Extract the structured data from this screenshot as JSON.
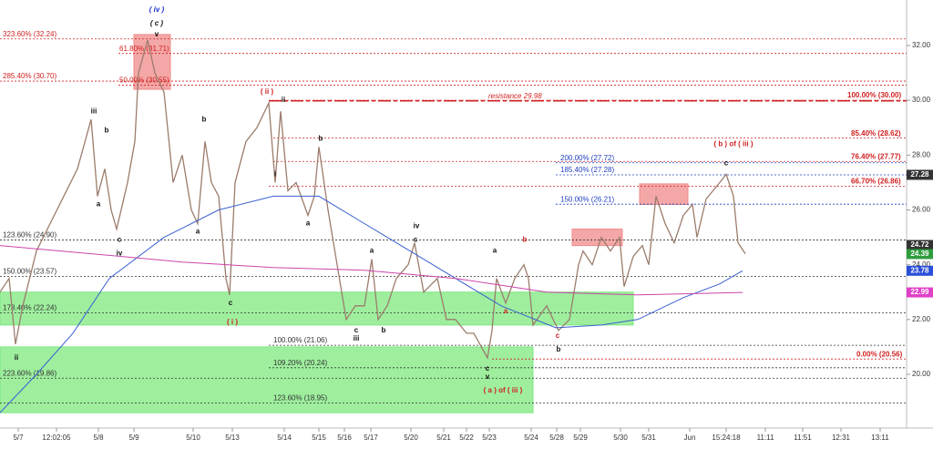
{
  "chart_data": {
    "type": "line",
    "xlim": [
      0,
      995
    ],
    "ylim": [
      18.04,
      33.66
    ],
    "yticks": [
      {
        "value": 20,
        "label": "20.00"
      },
      {
        "value": 22,
        "label": "22.00"
      },
      {
        "value": 24,
        "label": "24.00"
      },
      {
        "value": 26,
        "label": "26.00"
      },
      {
        "value": 28,
        "label": "28.00"
      },
      {
        "value": 30,
        "label": "30.00"
      },
      {
        "value": 32,
        "label": "32.00"
      }
    ],
    "xticks": [
      {
        "value": 20,
        "label": "5/7"
      },
      {
        "value": 62,
        "label": "12:02:05"
      },
      {
        "value": 108,
        "label": "5/8"
      },
      {
        "value": 147,
        "label": "5/9"
      },
      {
        "value": 212,
        "label": "5/10"
      },
      {
        "value": 255,
        "label": "5/13"
      },
      {
        "value": 312,
        "label": "5/14"
      },
      {
        "value": 350,
        "label": "5/15"
      },
      {
        "value": 378,
        "label": "5/16"
      },
      {
        "value": 407,
        "label": "5/17"
      },
      {
        "value": 451,
        "label": "5/20"
      },
      {
        "value": 487,
        "label": "5/21"
      },
      {
        "value": 512,
        "label": "5/22"
      },
      {
        "value": 537,
        "label": "5/23"
      },
      {
        "value": 583,
        "label": "5/24"
      },
      {
        "value": 611,
        "label": "5/28"
      },
      {
        "value": 637,
        "label": "5/29"
      },
      {
        "value": 681,
        "label": "5/30"
      },
      {
        "value": 712,
        "label": "5/31"
      },
      {
        "value": 757,
        "label": "Jun"
      },
      {
        "value": 797,
        "label": "15:24:18"
      },
      {
        "value": 840,
        "label": "11:11"
      },
      {
        "value": 881,
        "label": "11:51"
      },
      {
        "value": 923,
        "label": "12:31"
      },
      {
        "value": 966,
        "label": "13:11"
      }
    ],
    "series": [
      {
        "color": "#9c7c6c",
        "width": 1.3,
        "x": [
          0,
          10,
          17,
          25,
          40,
          55,
          70,
          85,
          100,
          107,
          115,
          122,
          128,
          140,
          148,
          152,
          162,
          170,
          180,
          190,
          200,
          210,
          217,
          225,
          232,
          240,
          248,
          252,
          258,
          270,
          282,
          295,
          302,
          308,
          316,
          325,
          338,
          345,
          350,
          360,
          370,
          380,
          390,
          400,
          408,
          415,
          425,
          435,
          448,
          455,
          465,
          480,
          490,
          500,
          512,
          520,
          535,
          540,
          545,
          555,
          565,
          575,
          580,
          585,
          600,
          613,
          625,
          635,
          640,
          650,
          660,
          670,
          680,
          685,
          695,
          705,
          712,
          720,
          730,
          740,
          750,
          760,
          765,
          775,
          790,
          797,
          805,
          810,
          818
        ],
        "values": [
          23.0,
          23.5,
          21.1,
          22.5,
          24.5,
          25.5,
          26.5,
          27.5,
          29.3,
          26.5,
          27.5,
          26.0,
          25.3,
          27.0,
          28.5,
          31.0,
          32.2,
          31.0,
          30.3,
          27.0,
          28.0,
          26.0,
          25.5,
          28.5,
          27.0,
          26.5,
          23.5,
          22.9,
          27.0,
          28.5,
          29.0,
          29.9,
          27.0,
          29.6,
          26.7,
          27.0,
          25.8,
          26.5,
          28.3,
          26.0,
          24.0,
          22.0,
          22.5,
          22.5,
          24.2,
          22.0,
          22.5,
          23.5,
          24.0,
          24.8,
          23.0,
          23.5,
          22.0,
          22.0,
          21.5,
          21.5,
          20.6,
          21.6,
          23.5,
          22.6,
          23.5,
          24.0,
          23.5,
          21.8,
          22.5,
          21.6,
          22.0,
          24.0,
          24.5,
          24.0,
          25.0,
          24.5,
          25.0,
          23.2,
          24.3,
          24.7,
          24.0,
          26.5,
          25.5,
          24.8,
          25.8,
          26.2,
          25.0,
          26.4,
          27.0,
          27.3,
          26.5,
          24.8,
          24.4
        ]
      },
      {
        "color": "#3a5fd0",
        "width": 1,
        "x": [
          0,
          40,
          80,
          120,
          180,
          240,
          300,
          350,
          400,
          450,
          500,
          550,
          610,
          660,
          700,
          750,
          790,
          815
        ],
        "values": [
          18.6,
          20.0,
          21.5,
          23.5,
          25.0,
          26.0,
          26.5,
          26.5,
          25.5,
          24.5,
          23.5,
          22.5,
          21.7,
          21.8,
          22.0,
          22.8,
          23.3,
          23.78
        ]
      },
      {
        "color": "#cc44aa",
        "width": 1,
        "x": [
          0,
          100,
          200,
          300,
          400,
          500,
          600,
          700,
          815
        ],
        "values": [
          24.7,
          24.4,
          24.1,
          23.9,
          23.8,
          23.5,
          23.0,
          22.9,
          22.99
        ]
      }
    ],
    "zones": [
      {
        "x0": 0,
        "x1": 695,
        "y0": 21.8,
        "y1": 23.0,
        "color": "#7ee87e"
      },
      {
        "x0": 0,
        "x1": 585,
        "y0": 18.6,
        "y1": 21.0,
        "color": "#7ee87e"
      },
      {
        "x0": 147,
        "x1": 187,
        "y0": 30.4,
        "y1": 32.4,
        "color": "#f08a8a"
      },
      {
        "x0": 628,
        "x1": 683,
        "y0": 24.7,
        "y1": 25.3,
        "color": "#f08a8a"
      },
      {
        "x0": 702,
        "x1": 755,
        "y0": 26.2,
        "y1": 26.95,
        "color": "#f08a8a"
      }
    ],
    "levels": [
      {
        "label": "323.60% (32.24)",
        "value": 32.24,
        "x0": 0,
        "label_x": 3,
        "color": "#d02020"
      },
      {
        "label": "285.40% (30.70)",
        "value": 30.7,
        "x0": 0,
        "label_x": 3,
        "color": "#d02020"
      },
      {
        "label": "61.80% (31.71)",
        "value": 31.71,
        "x0": 130,
        "label_x": 131,
        "color": "#d02020"
      },
      {
        "label": "50.00% (30.55)",
        "value": 30.55,
        "x0": 130,
        "label_x": 131,
        "color": "#d02020"
      },
      {
        "label": "resistance 29.98",
        "value": 29.98,
        "x0": 295,
        "label_x": 536,
        "color": "#d02020",
        "dashed": true
      },
      {
        "label": "100.00% (30.00)",
        "value": 30.0,
        "x0": 295,
        "label_x": 930,
        "color": "#d02020",
        "bold": true
      },
      {
        "label": "85.40% (28.62)",
        "value": 28.62,
        "x0": 300,
        "label_x": 934,
        "color": "#d02020",
        "bold": true
      },
      {
        "label": "76.40% (27.77)",
        "value": 27.77,
        "x0": 300,
        "label_x": 934,
        "color": "#d02020",
        "bold": true
      },
      {
        "label": "66.70% (26.86)",
        "value": 26.86,
        "x0": 295,
        "label_x": 934,
        "color": "#d02020",
        "bold": true
      },
      {
        "label": "200.00% (27.72)",
        "value": 27.72,
        "x0": 610,
        "label_x": 615,
        "color": "#2040c0"
      },
      {
        "label": "185.40% (27.28)",
        "value": 27.28,
        "x0": 610,
        "label_x": 615,
        "color": "#2040c0"
      },
      {
        "label": "150.00% (26.21)",
        "value": 26.21,
        "x0": 610,
        "label_x": 615,
        "color": "#2040c0"
      },
      {
        "label": "123.60% (24.90)",
        "value": 24.9,
        "x0": 0,
        "label_x": 3,
        "color": "#333333"
      },
      {
        "label": "150.00% (23.57)",
        "value": 23.57,
        "x0": 0,
        "label_x": 3,
        "color": "#333333"
      },
      {
        "label": "178.40% (22.24)",
        "value": 22.24,
        "x0": 0,
        "label_x": 3,
        "color": "#333333"
      },
      {
        "label": "100.00% (21.06)",
        "value": 21.06,
        "x0": 295,
        "label_x": 300,
        "color": "#333333"
      },
      {
        "label": "109.20% (20.24)",
        "value": 20.24,
        "x0": 295,
        "label_x": 300,
        "color": "#333333"
      },
      {
        "label": "223.60% (19.86)",
        "value": 19.86,
        "x0": 0,
        "label_x": 3,
        "color": "#333333"
      },
      {
        "label": "123.60% (18.95)",
        "value": 18.95,
        "x0": 0,
        "label_x": 300,
        "color": "#333333"
      },
      {
        "label": "0.00% (20.56)",
        "value": 20.56,
        "x0": 540,
        "label_x": 940,
        "color": "#d02020",
        "bold": true
      }
    ],
    "price_labels": [
      {
        "value": 27.28,
        "color": "#333333"
      },
      {
        "value": 24.72,
        "color": "#333333"
      },
      {
        "value": 24.39,
        "color": "#2e9e3e"
      },
      {
        "value": 23.78,
        "color": "#2a4fd8"
      },
      {
        "value": 22.99,
        "color": "#e040c8"
      }
    ],
    "annotations": [
      {
        "text": "( iv )",
        "x": 172,
        "y": 33.3,
        "color": "#1a2fd0",
        "size": 13
      },
      {
        "text": "( c )",
        "x": 172,
        "y": 32.8,
        "color": "#111111",
        "size": 13
      },
      {
        "text": "v",
        "x": 172,
        "y": 32.4,
        "color": "#111111",
        "size": 11
      },
      {
        "text": "iii",
        "x": 103,
        "y": 29.6,
        "color": "#111111",
        "size": 11
      },
      {
        "text": "b",
        "x": 117,
        "y": 28.9,
        "color": "#111111",
        "size": 11
      },
      {
        "text": "a",
        "x": 108,
        "y": 26.2,
        "color": "#111111",
        "size": 11
      },
      {
        "text": "c",
        "x": 131,
        "y": 24.9,
        "color": "#111111",
        "size": 11
      },
      {
        "text": "iv",
        "x": 131,
        "y": 24.4,
        "color": "#111111",
        "size": 11
      },
      {
        "text": "ii",
        "x": 18,
        "y": 20.6,
        "color": "#111111",
        "size": 11
      },
      {
        "text": "b",
        "x": 224,
        "y": 29.3,
        "color": "#111111",
        "size": 11
      },
      {
        "text": "a",
        "x": 217,
        "y": 25.2,
        "color": "#111111",
        "size": 11
      },
      {
        "text": "c",
        "x": 253,
        "y": 22.6,
        "color": "#111111",
        "size": 11
      },
      {
        "text": "( i )",
        "x": 255,
        "y": 21.9,
        "color": "#d02020",
        "size": 11
      },
      {
        "text": "( ii )",
        "x": 293,
        "y": 30.3,
        "color": "#d02020",
        "size": 11
      },
      {
        "text": "ii",
        "x": 311,
        "y": 30.0,
        "color": "#111111",
        "size": 9
      },
      {
        "text": "i",
        "x": 302,
        "y": 27.3,
        "color": "#111111",
        "size": 9
      },
      {
        "text": "b",
        "x": 352,
        "y": 28.6,
        "color": "#111111",
        "size": 9
      },
      {
        "text": "a",
        "x": 338,
        "y": 25.5,
        "color": "#111111",
        "size": 9
      },
      {
        "text": "iv",
        "x": 457,
        "y": 25.4,
        "color": "#111111",
        "size": 9
      },
      {
        "text": "c",
        "x": 456,
        "y": 24.9,
        "color": "#111111",
        "size": 9
      },
      {
        "text": "a",
        "x": 408,
        "y": 24.5,
        "color": "#111111",
        "size": 9
      },
      {
        "text": "c",
        "x": 391,
        "y": 21.6,
        "color": "#111111",
        "size": 9
      },
      {
        "text": "iii",
        "x": 391,
        "y": 21.3,
        "color": "#111111",
        "size": 9
      },
      {
        "text": "b",
        "x": 421,
        "y": 21.6,
        "color": "#111111",
        "size": 9
      },
      {
        "text": "a",
        "x": 543,
        "y": 24.5,
        "color": "#111111",
        "size": 11
      },
      {
        "text": "b",
        "x": 576,
        "y": 24.9,
        "color": "#d02020",
        "size": 9
      },
      {
        "text": "a",
        "x": 555,
        "y": 22.3,
        "color": "#d02020",
        "size": 9
      },
      {
        "text": "c",
        "x": 612,
        "y": 21.4,
        "color": "#d02020",
        "size": 9
      },
      {
        "text": "b",
        "x": 613,
        "y": 20.9,
        "color": "#111111",
        "size": 11
      },
      {
        "text": "c",
        "x": 535,
        "y": 20.2,
        "color": "#111111",
        "size": 9
      },
      {
        "text": "v",
        "x": 535,
        "y": 19.9,
        "color": "#111111",
        "size": 9
      },
      {
        "text": "( a ) of ( iii )",
        "x": 552,
        "y": 19.4,
        "color": "#d02020",
        "size": 11
      },
      {
        "text": "( b ) of ( iii )",
        "x": 805,
        "y": 28.4,
        "color": "#d02020",
        "size": 11
      },
      {
        "text": "c",
        "x": 797,
        "y": 27.7,
        "color": "#111111",
        "size": 11
      }
    ]
  }
}
